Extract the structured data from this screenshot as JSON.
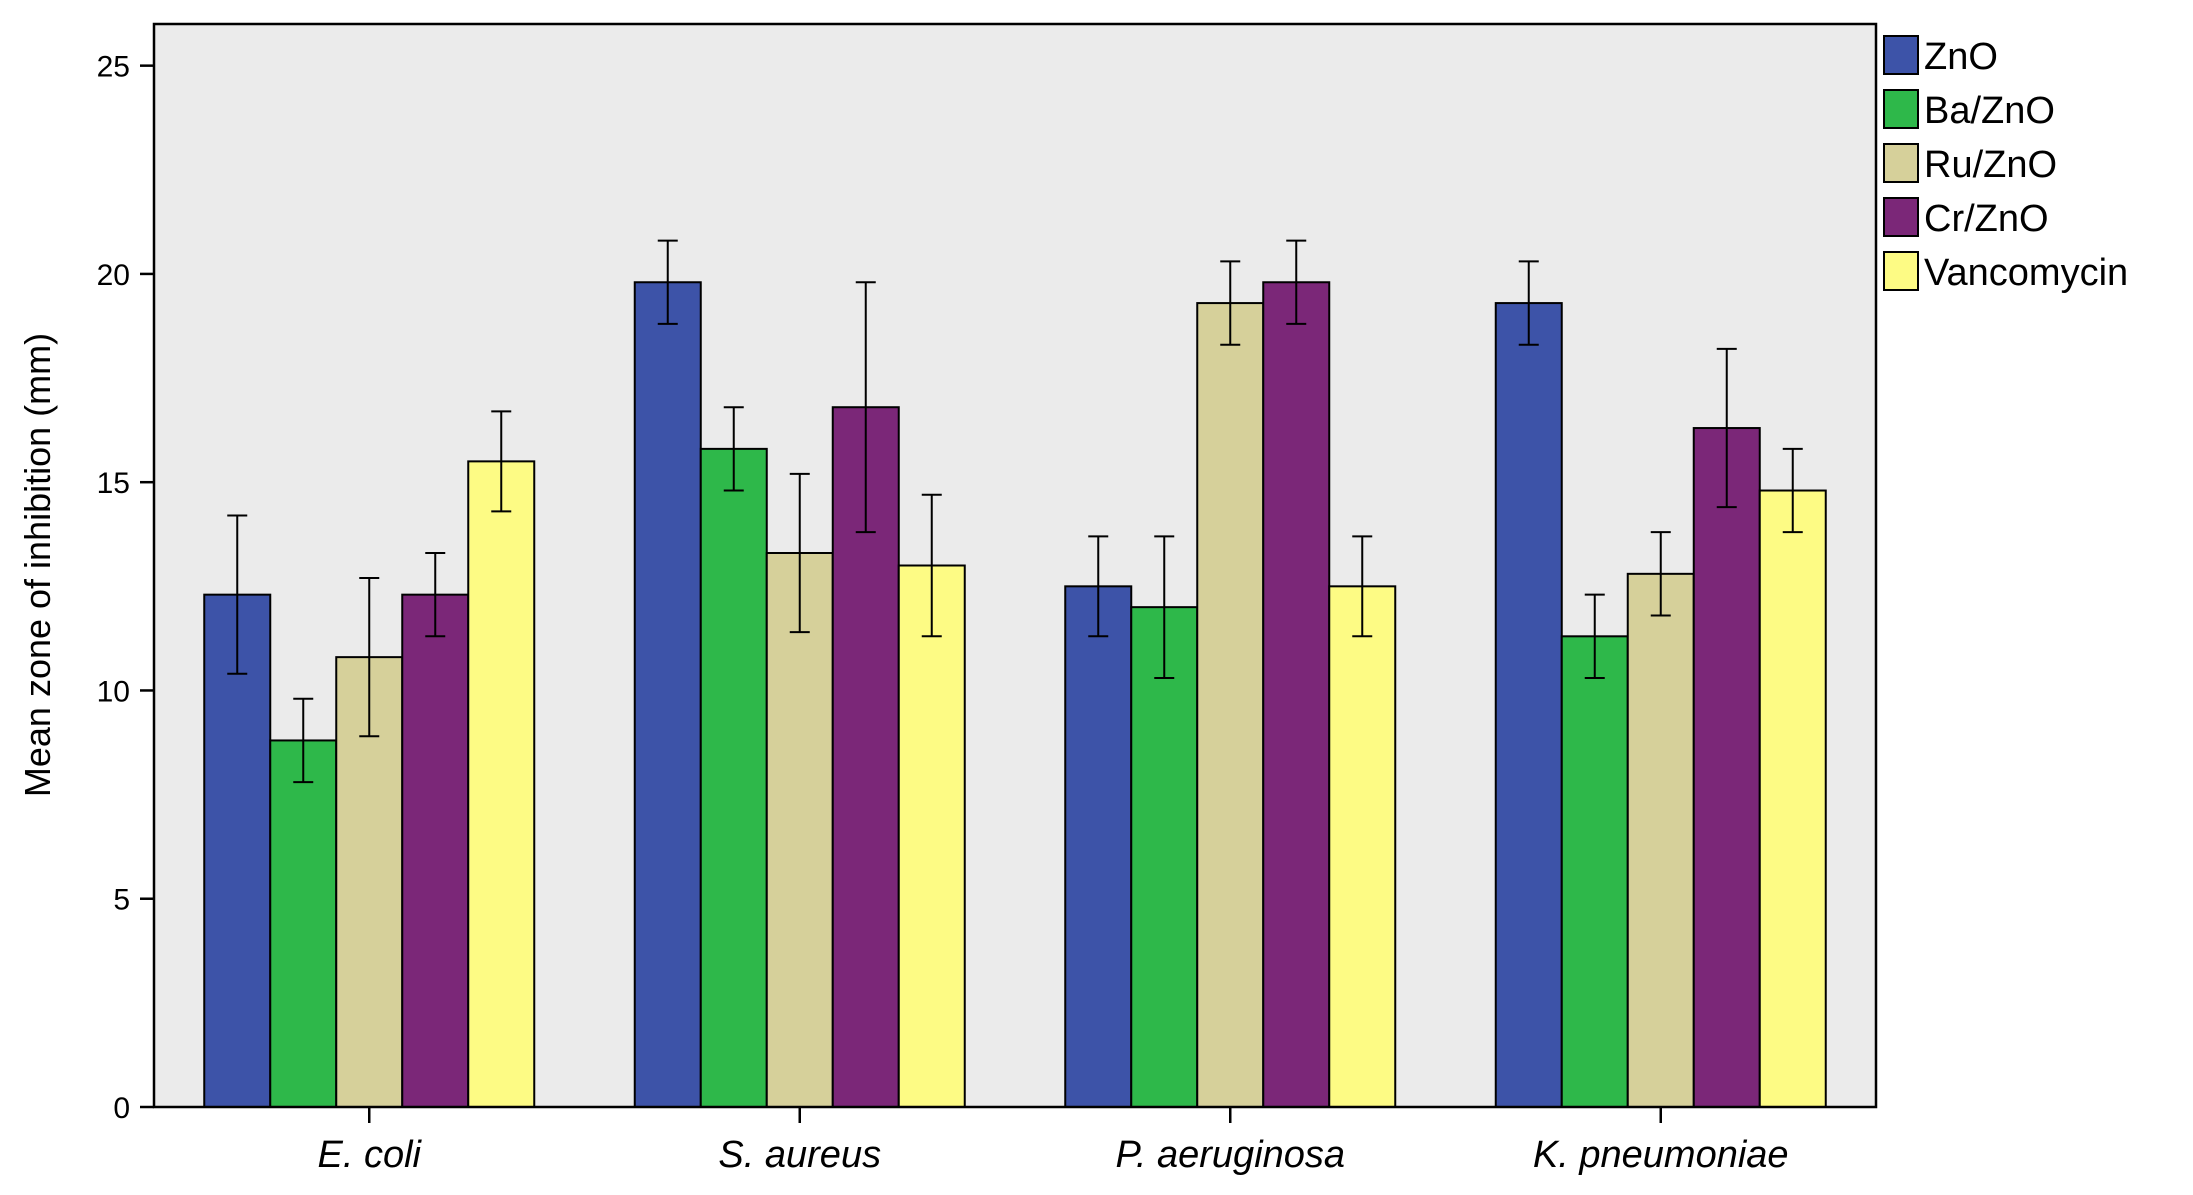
{
  "chart_data": {
    "type": "bar",
    "title": "",
    "xlabel": "",
    "ylabel": "Mean zone of inhibition (mm)",
    "ylim": [
      0,
      26
    ],
    "yticks": [
      0,
      5,
      10,
      15,
      20,
      25
    ],
    "grid": false,
    "legend_position": "right-top",
    "background": "#ebebeb",
    "categories": [
      "E. coli",
      "S. aureus",
      "P. aeruginosa",
      "K. pneumoniae"
    ],
    "series": [
      {
        "name": "ZnO",
        "color": "#3d53a8",
        "values": [
          12.3,
          19.8,
          12.5,
          19.3
        ],
        "error": [
          1.9,
          1.0,
          1.2,
          1.0
        ]
      },
      {
        "name": "Ba/ZnO",
        "color": "#2eb84a",
        "values": [
          8.8,
          15.8,
          12.0,
          11.3
        ],
        "error": [
          1.0,
          1.0,
          1.7,
          1.0
        ]
      },
      {
        "name": "Ru/ZnO",
        "color": "#d6d09a",
        "values": [
          10.8,
          13.3,
          19.3,
          12.8
        ],
        "error": [
          1.9,
          1.9,
          1.0,
          1.0
        ]
      },
      {
        "name": "Cr/ZnO",
        "color": "#7b2778",
        "values": [
          12.3,
          16.8,
          19.8,
          16.3
        ],
        "error": [
          1.0,
          3.0,
          1.0,
          1.9
        ]
      },
      {
        "name": "Vancomycin",
        "color": "#fdfb84",
        "values": [
          15.5,
          13.0,
          12.5,
          14.8
        ],
        "error": [
          1.2,
          1.7,
          1.2,
          1.0
        ]
      }
    ]
  }
}
